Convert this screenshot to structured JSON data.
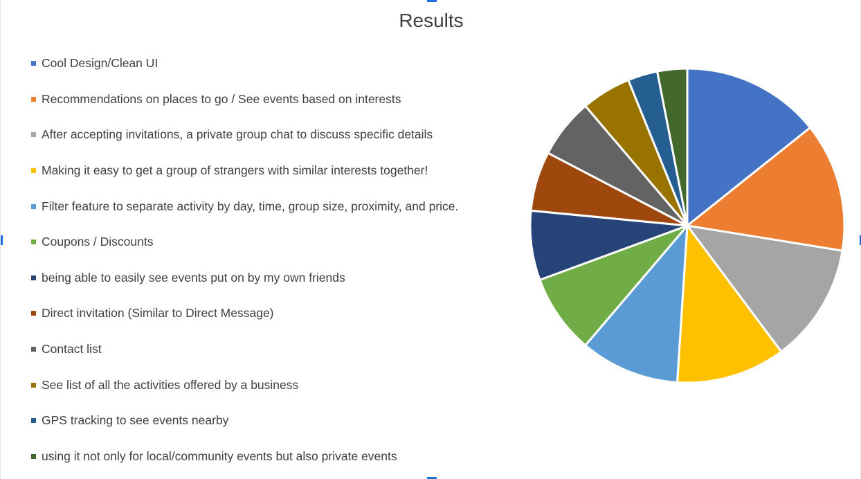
{
  "chart_data": {
    "type": "pie",
    "title": "Results",
    "legend_position": "left",
    "categories": [
      "Cool Design/Clean UI",
      "Recommendations on places to go / See events based on interests",
      "After accepting invitations, a private group chat to discuss specific details",
      "Making it easy to get a group of strangers with similar interests together!",
      "Filter feature to separate activity by day, time, group size, proximity, and price.",
      "Coupons / Discounts",
      "being able to easily see events put on by my own friends",
      "Direct invitation (Similar to Direct Message)",
      "Contact list",
      "See list of all the activities offered by a business",
      "GPS tracking to see events nearby",
      "using it not only for local/community events but also private events"
    ],
    "values": [
      14,
      13,
      12,
      11,
      10,
      8,
      7,
      6,
      6,
      5,
      3,
      3
    ],
    "colors": [
      "#4472C4",
      "#ED7D31",
      "#A5A5A5",
      "#FFC000",
      "#5B9BD5",
      "#70AD47",
      "#264478",
      "#9E480E",
      "#636363",
      "#997300",
      "#255E91",
      "#43682B"
    ]
  }
}
